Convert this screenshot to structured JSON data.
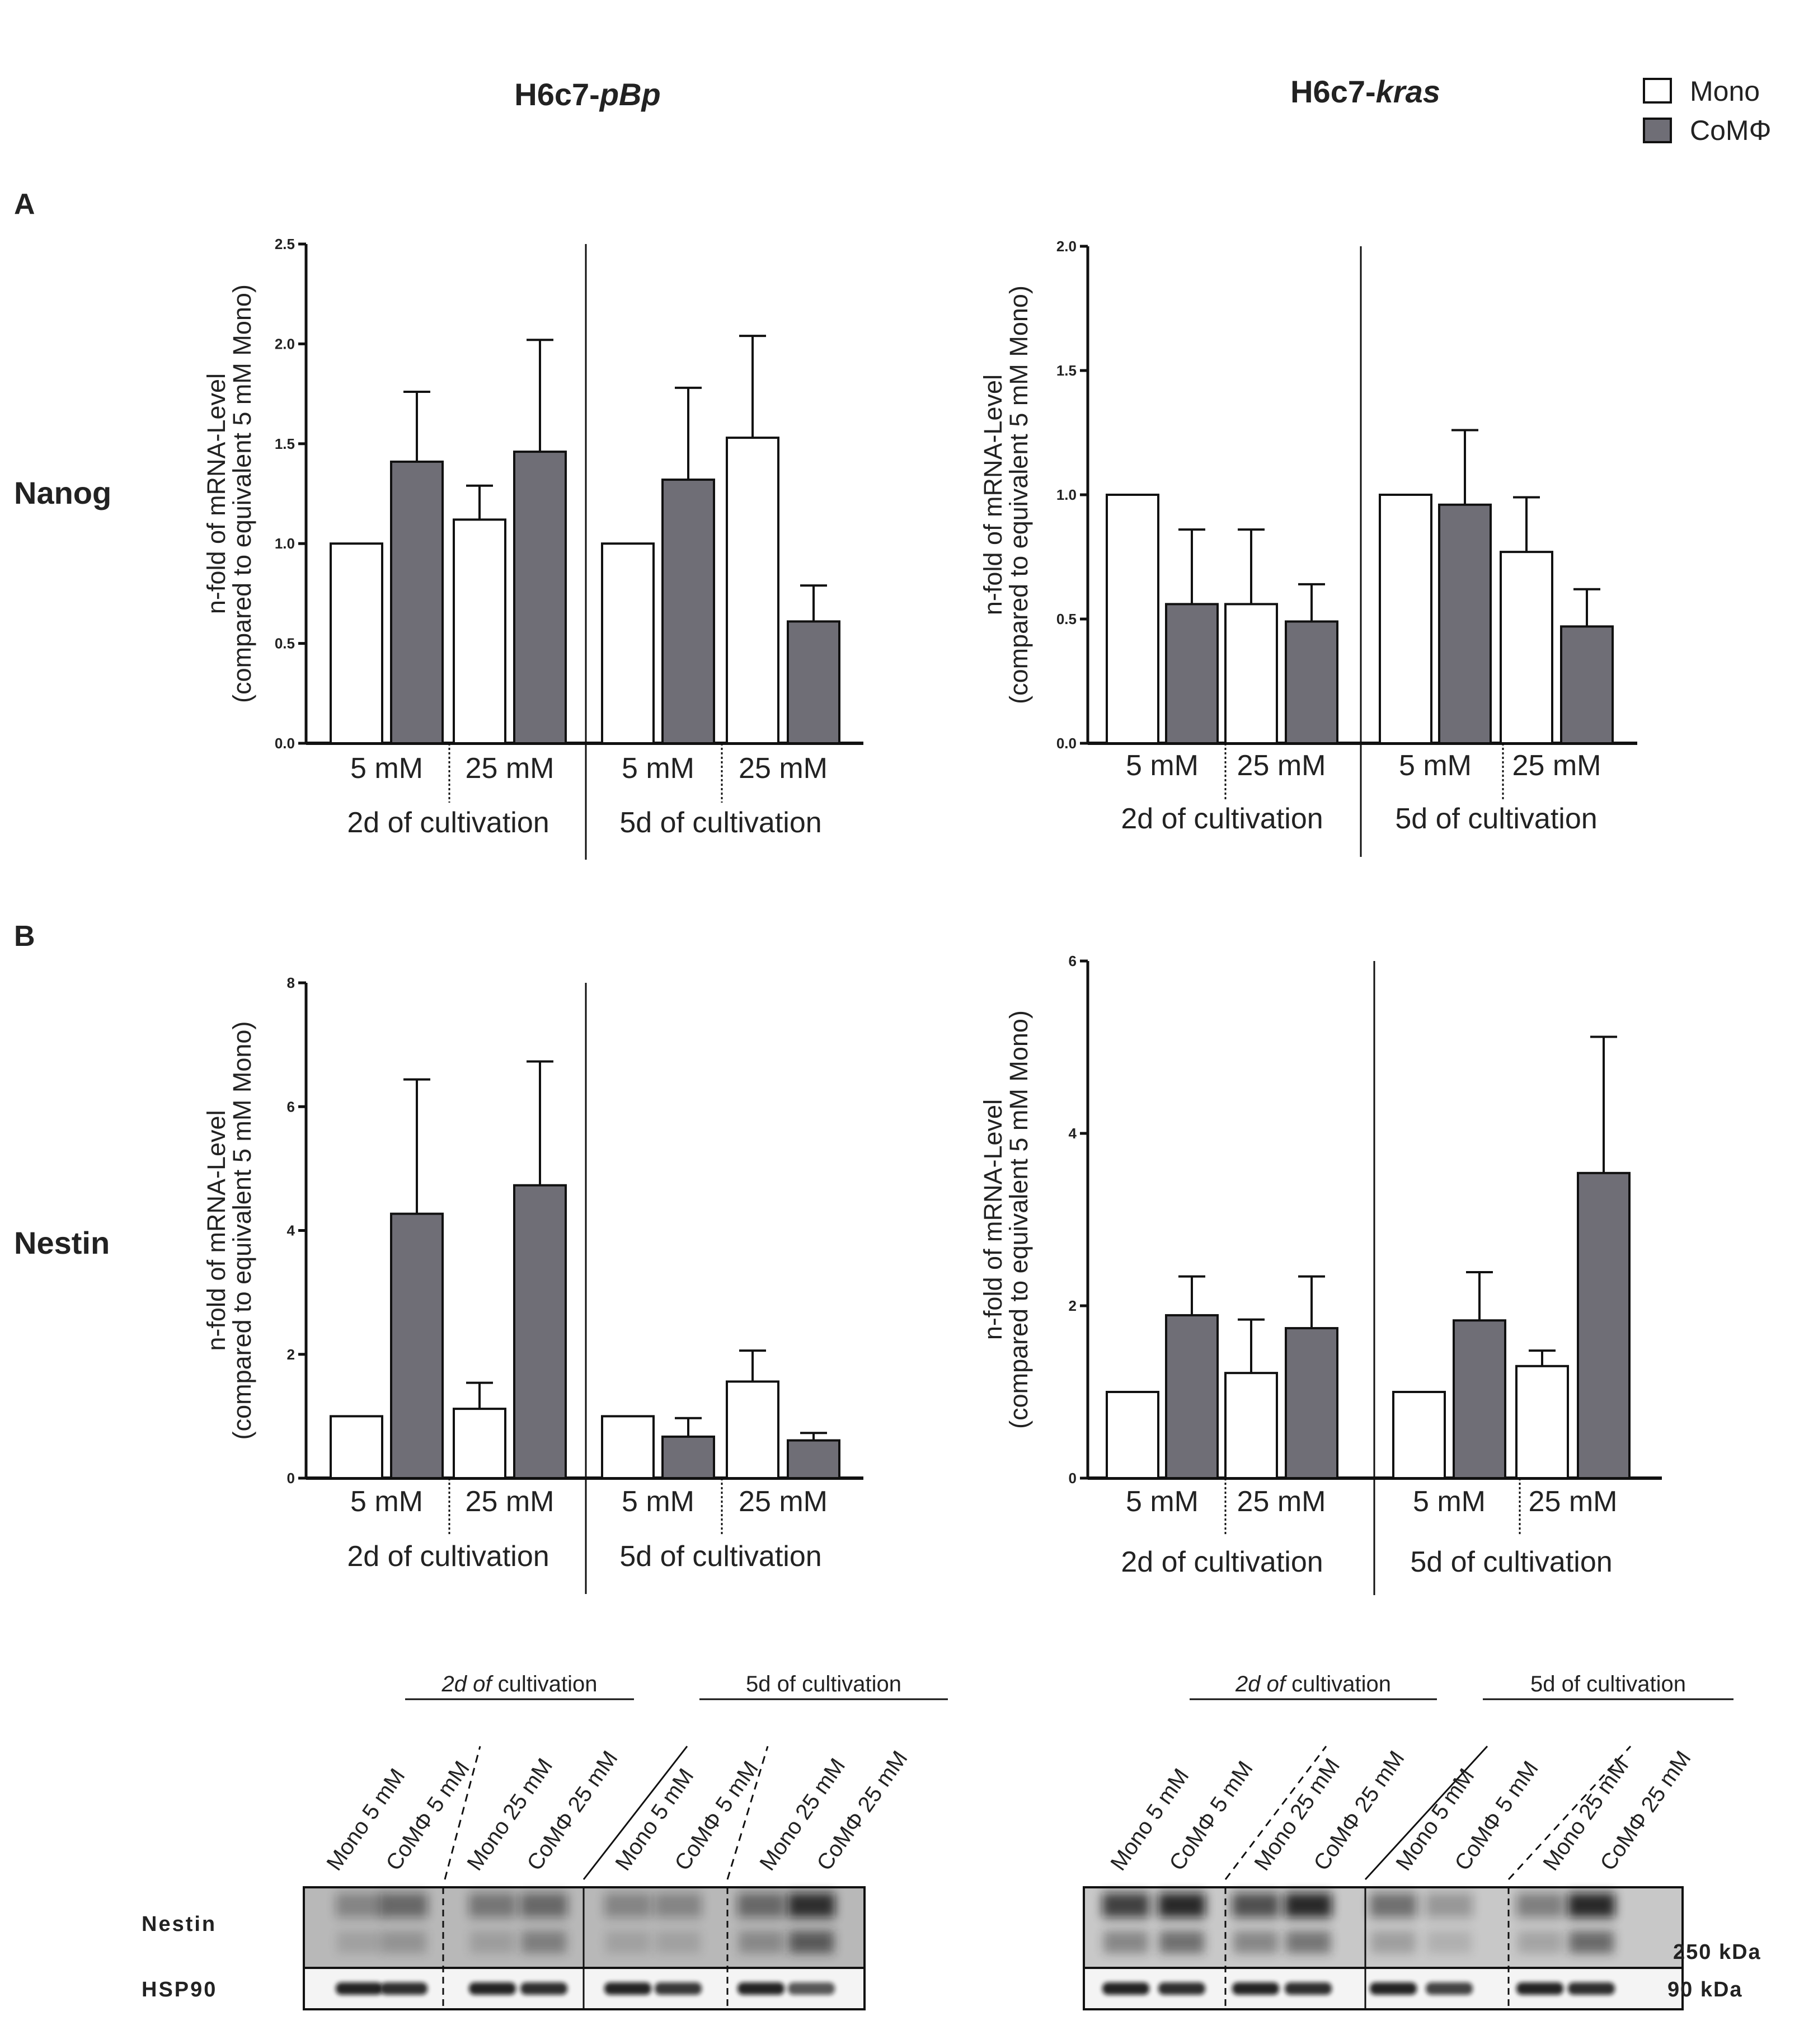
{
  "column_titles": [
    {
      "prefix": "H6c7-",
      "italic": "pBp"
    },
    {
      "prefix": "H6c7-",
      "italic": "kras"
    }
  ],
  "legend": [
    {
      "label": "Mono",
      "color": "#ffffff"
    },
    {
      "label": "CoMΦ",
      "color": "#6f6e76"
    }
  ],
  "panel_labels": [
    "A",
    "B"
  ],
  "row_labels": [
    "Nanog",
    "Nestin"
  ],
  "ylabel_line1": "n-fold of mRNA-Level",
  "ylabel_line2": "(compared to equivalent 5 mM Mono)",
  "xgroups": [
    "5 mM",
    "25 mM",
    "5 mM",
    "25 mM"
  ],
  "xperiods": [
    "2d of cultivation",
    "5d of cultivation"
  ],
  "chart_data": [
    {
      "type": "bar",
      "name": "nanog-pbp",
      "row": "Nanog",
      "cell_line": "H6c7-pBp",
      "ylim": [
        0,
        2.5
      ],
      "yticks": [
        0,
        0.5,
        1.0,
        1.5,
        2.0,
        2.5
      ],
      "ytick_labels": [
        "0.0",
        "0.5",
        "1.0",
        "1.5",
        "2.0",
        "2.5"
      ],
      "categories": [
        "2d 5 mM",
        "2d 25 mM",
        "5d 5 mM",
        "5d 25 mM"
      ],
      "series": [
        {
          "name": "Mono",
          "values": [
            1.0,
            1.12,
            1.0,
            1.53
          ],
          "errors": [
            0,
            0.17,
            0,
            0.51
          ]
        },
        {
          "name": "CoMΦ",
          "values": [
            1.41,
            1.46,
            1.32,
            0.61
          ],
          "errors": [
            0.35,
            0.56,
            0.46,
            0.18
          ]
        }
      ]
    },
    {
      "type": "bar",
      "name": "nanog-kras",
      "row": "Nanog",
      "cell_line": "H6c7-kras",
      "ylim": [
        0,
        2.0
      ],
      "yticks": [
        0,
        0.5,
        1.0,
        1.5,
        2.0
      ],
      "ytick_labels": [
        "0.0",
        "0.5",
        "1.0",
        "1.5",
        "2.0"
      ],
      "categories": [
        "2d 5 mM",
        "2d 25 mM",
        "5d 5 mM",
        "5d 25 mM"
      ],
      "series": [
        {
          "name": "Mono",
          "values": [
            1.0,
            0.56,
            1.0,
            0.77
          ],
          "errors": [
            0,
            0.3,
            0,
            0.22
          ]
        },
        {
          "name": "CoMΦ",
          "values": [
            0.56,
            0.49,
            0.96,
            0.47
          ],
          "errors": [
            0.3,
            0.15,
            0.3,
            0.15
          ]
        }
      ]
    },
    {
      "type": "bar",
      "name": "nestin-pbp",
      "row": "Nestin",
      "cell_line": "H6c7-pBp",
      "ylim": [
        0,
        8
      ],
      "yticks": [
        0,
        2,
        4,
        6,
        8
      ],
      "ytick_labels": [
        "0",
        "2",
        "4",
        "6",
        "8"
      ],
      "categories": [
        "2d 5 mM",
        "2d 25 mM",
        "5d 5 mM",
        "5d 25 mM"
      ],
      "series": [
        {
          "name": "Mono",
          "values": [
            1.0,
            1.12,
            1.0,
            1.56
          ],
          "errors": [
            0,
            0.42,
            0,
            0.5
          ]
        },
        {
          "name": "CoMΦ",
          "values": [
            4.27,
            4.73,
            0.67,
            0.61
          ],
          "errors": [
            2.17,
            2.0,
            0.3,
            0.12
          ]
        }
      ]
    },
    {
      "type": "bar",
      "name": "nestin-kras",
      "row": "Nestin",
      "cell_line": "H6c7-kras",
      "ylim": [
        0,
        6
      ],
      "yticks": [
        0,
        2,
        4,
        6
      ],
      "ytick_labels": [
        "0",
        "2",
        "4",
        "6"
      ],
      "categories": [
        "2d 5 mM",
        "2d 25 mM",
        "5d 5 mM",
        "5d 25 mM"
      ],
      "series": [
        {
          "name": "Mono",
          "values": [
            1.0,
            1.22,
            1.0,
            1.3
          ],
          "errors": [
            0,
            0.62,
            0,
            0.18
          ]
        },
        {
          "name": "CoMΦ",
          "values": [
            1.89,
            1.74,
            1.83,
            3.54
          ],
          "errors": [
            0.45,
            0.6,
            0.56,
            1.58
          ]
        }
      ]
    }
  ],
  "western": {
    "period_2d": {
      "italic": "2d of",
      "rest": " cultivation"
    },
    "period_5d": "5d of cultivation",
    "lanes": [
      "Mono 5 mM",
      "CoMΦ 5 mM",
      "Mono 25 mM",
      "CoMΦ 25 mM",
      "Mono 5 mM",
      "CoMΦ 5 mM",
      "Mono 25 mM",
      "CoMΦ 25 mM"
    ],
    "proteins": [
      "Nestin",
      "HSP90"
    ],
    "markers": [
      "250 kDa",
      "90 kDa"
    ]
  }
}
